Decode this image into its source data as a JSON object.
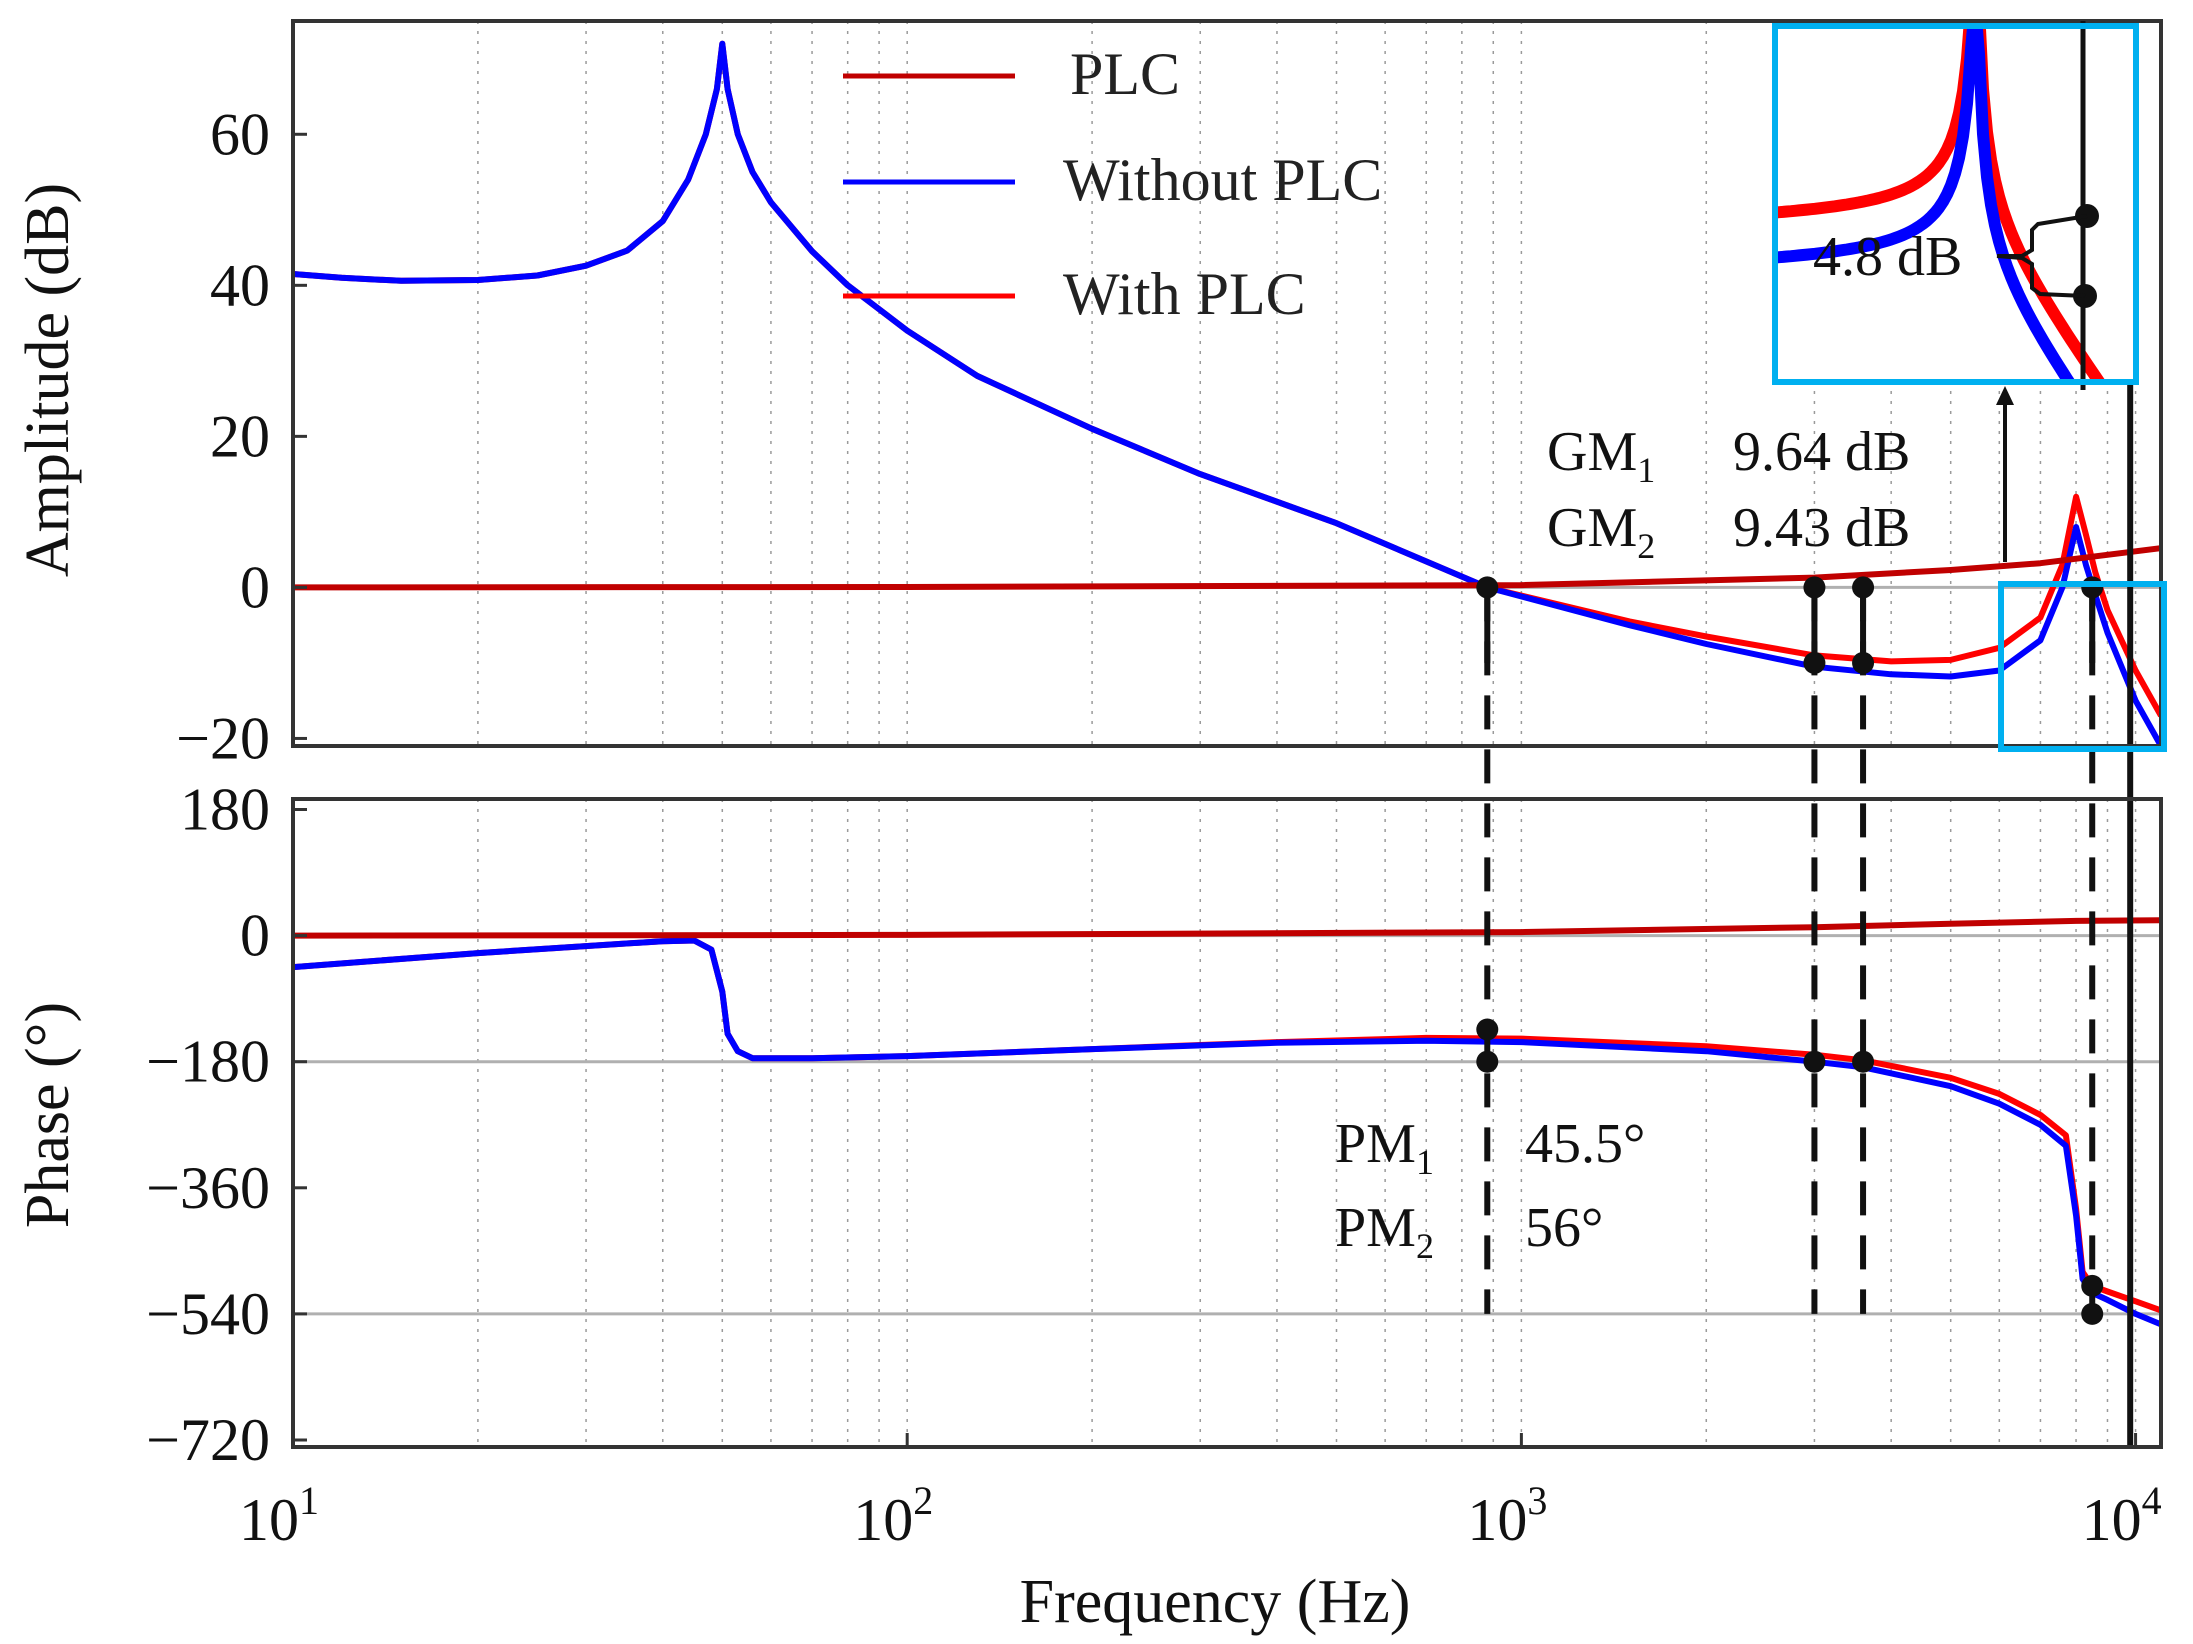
{
  "chart_data": {
    "type": "line",
    "panels": [
      {
        "name": "amplitude",
        "ylabel": "Amplitude (dB)",
        "ylim": [
          -21,
          75
        ],
        "yticks": [
          60,
          40,
          20,
          0,
          -20
        ],
        "ytick_labels": [
          "60",
          "40",
          "20",
          "0",
          "−20"
        ]
      },
      {
        "name": "phase",
        "ylabel": "Phase (°)",
        "ylim": [
          -730,
          195
        ],
        "yticks": [
          180,
          0,
          -180,
          -360,
          -540,
          -720
        ],
        "ytick_labels": [
          "180",
          "0",
          "−180",
          "−360",
          "−540",
          "−720"
        ],
        "reference_lines": [
          0,
          -180,
          -540
        ]
      }
    ],
    "xlabel": "Frequency (Hz)",
    "xscale": "log",
    "xlim": [
      10,
      11000
    ],
    "xticks": [
      {
        "base": "10",
        "exp": "1",
        "value": 10
      },
      {
        "base": "10",
        "exp": "2",
        "value": 100
      },
      {
        "base": "10",
        "exp": "3",
        "value": 1000
      },
      {
        "base": "10",
        "exp": "4",
        "value": 10000
      }
    ],
    "legend": {
      "placement": "top-center",
      "entries": [
        {
          "label": "PLC",
          "color": "#c00000"
        },
        {
          "label": "Without PLC",
          "color": "#0000ff"
        },
        {
          "label": "With PLC",
          "color": "#ff0000"
        }
      ]
    },
    "series": [
      {
        "name": "PLC",
        "color": "#c00000",
        "amplitude": [
          [
            10,
            0
          ],
          [
            100,
            0.05
          ],
          [
            1000,
            0.3
          ],
          [
            3000,
            1.3
          ],
          [
            5000,
            2.3
          ],
          [
            7000,
            3.2
          ],
          [
            11000,
            5.2
          ]
        ],
        "phase": [
          [
            10,
            0
          ],
          [
            100,
            1
          ],
          [
            1000,
            5
          ],
          [
            3000,
            12
          ],
          [
            5000,
            17
          ],
          [
            8000,
            21
          ],
          [
            11000,
            22
          ]
        ]
      },
      {
        "name": "Without PLC",
        "color": "#0000ff",
        "amplitude": [
          [
            10,
            41.5
          ],
          [
            12,
            41
          ],
          [
            15,
            40.6
          ],
          [
            20,
            40.7
          ],
          [
            25,
            41.3
          ],
          [
            30,
            42.6
          ],
          [
            35,
            44.6
          ],
          [
            40,
            48.5
          ],
          [
            44,
            54
          ],
          [
            47,
            60
          ],
          [
            49,
            66
          ],
          [
            50,
            72
          ],
          [
            51,
            66
          ],
          [
            53,
            60
          ],
          [
            56,
            55
          ],
          [
            60,
            51
          ],
          [
            70,
            44.5
          ],
          [
            80,
            40
          ],
          [
            100,
            34
          ],
          [
            130,
            28
          ],
          [
            200,
            21
          ],
          [
            300,
            15
          ],
          [
            500,
            8.5
          ],
          [
            880,
            0
          ],
          [
            1500,
            -5
          ],
          [
            2000,
            -7.5
          ],
          [
            3000,
            -10.5
          ],
          [
            4000,
            -11.5
          ],
          [
            5000,
            -11.8
          ],
          [
            6000,
            -11
          ],
          [
            7000,
            -7
          ],
          [
            7600,
            0
          ],
          [
            8000,
            8
          ],
          [
            8300,
            3
          ],
          [
            8600,
            -1
          ],
          [
            9000,
            -6
          ],
          [
            10000,
            -15
          ],
          [
            11000,
            -21
          ]
        ],
        "phase": [
          [
            10,
            -45
          ],
          [
            20,
            -25
          ],
          [
            40,
            -8
          ],
          [
            45,
            -7
          ],
          [
            48,
            -20
          ],
          [
            50,
            -80
          ],
          [
            51,
            -140
          ],
          [
            53,
            -165
          ],
          [
            56,
            -175
          ],
          [
            70,
            -175
          ],
          [
            100,
            -172
          ],
          [
            200,
            -162
          ],
          [
            400,
            -153
          ],
          [
            700,
            -150
          ],
          [
            1000,
            -152
          ],
          [
            2000,
            -165
          ],
          [
            3000,
            -180
          ],
          [
            3600,
            -188
          ],
          [
            5000,
            -215
          ],
          [
            6000,
            -240
          ],
          [
            7000,
            -270
          ],
          [
            7700,
            -300
          ],
          [
            8000,
            -400
          ],
          [
            8200,
            -490
          ],
          [
            8500,
            -510
          ],
          [
            9000,
            -520
          ],
          [
            10000,
            -540
          ],
          [
            11000,
            -555
          ]
        ]
      },
      {
        "name": "With PLC",
        "color": "#ff0000",
        "amplitude": [
          [
            10,
            41.5
          ],
          [
            12,
            41
          ],
          [
            15,
            40.6
          ],
          [
            20,
            40.7
          ],
          [
            25,
            41.3
          ],
          [
            30,
            42.6
          ],
          [
            35,
            44.6
          ],
          [
            40,
            48.5
          ],
          [
            44,
            54
          ],
          [
            47,
            60
          ],
          [
            49,
            66
          ],
          [
            50,
            72
          ],
          [
            51,
            66
          ],
          [
            53,
            60
          ],
          [
            56,
            55
          ],
          [
            60,
            51
          ],
          [
            70,
            44.5
          ],
          [
            80,
            40
          ],
          [
            100,
            34
          ],
          [
            130,
            28
          ],
          [
            200,
            21
          ],
          [
            300,
            15
          ],
          [
            500,
            8.5
          ],
          [
            880,
            0
          ],
          [
            1500,
            -4.5
          ],
          [
            2000,
            -6.5
          ],
          [
            3000,
            -9
          ],
          [
            4000,
            -9.8
          ],
          [
            5000,
            -9.6
          ],
          [
            6000,
            -8
          ],
          [
            7000,
            -4
          ],
          [
            7600,
            3
          ],
          [
            8000,
            12
          ],
          [
            8300,
            7
          ],
          [
            8600,
            2
          ],
          [
            9000,
            -3
          ],
          [
            10000,
            -11
          ],
          [
            11000,
            -17
          ]
        ],
        "phase": [
          [
            10,
            -45
          ],
          [
            20,
            -25
          ],
          [
            40,
            -8
          ],
          [
            45,
            -7
          ],
          [
            48,
            -20
          ],
          [
            50,
            -80
          ],
          [
            51,
            -140
          ],
          [
            53,
            -165
          ],
          [
            56,
            -175
          ],
          [
            70,
            -175
          ],
          [
            100,
            -172
          ],
          [
            200,
            -162
          ],
          [
            400,
            -152
          ],
          [
            700,
            -146
          ],
          [
            1000,
            -147
          ],
          [
            2000,
            -158
          ],
          [
            3000,
            -170
          ],
          [
            3600,
            -178
          ],
          [
            5000,
            -203
          ],
          [
            6000,
            -226
          ],
          [
            7000,
            -256
          ],
          [
            7700,
            -285
          ],
          [
            8000,
            -390
          ],
          [
            8200,
            -480
          ],
          [
            8500,
            -500
          ],
          [
            9000,
            -508
          ],
          [
            10000,
            -522
          ],
          [
            11000,
            -535
          ]
        ]
      }
    ],
    "vertical_markers": [
      {
        "freq": 880,
        "style": "dashed"
      },
      {
        "freq": 3000,
        "style": "dashed"
      },
      {
        "freq": 3600,
        "style": "dashed"
      },
      {
        "freq": 8500,
        "style": "dashed"
      },
      {
        "freq": 9800,
        "style": "solid"
      }
    ],
    "markers": {
      "amplitude": [
        [
          880,
          0
        ],
        [
          3000,
          0
        ],
        [
          3000,
          -10
        ],
        [
          3600,
          0
        ],
        [
          3600,
          -10
        ],
        [
          8500,
          0
        ]
      ],
      "phase": [
        [
          880,
          -134
        ],
        [
          880,
          -180
        ],
        [
          3000,
          -180
        ],
        [
          3600,
          -180
        ],
        [
          8500,
          -500
        ],
        [
          8500,
          -540
        ]
      ]
    },
    "annotations": {
      "gm": [
        {
          "base": "GM",
          "sub": "1",
          "value": "9.64 dB"
        },
        {
          "base": "GM",
          "sub": "2",
          "value": "9.43 dB"
        }
      ],
      "pm": [
        {
          "base": "PM",
          "sub": "1",
          "value": "45.5°"
        },
        {
          "base": "PM",
          "sub": "2",
          "value": "56°"
        }
      ],
      "inset_label": "4.8 dB"
    },
    "inset": {
      "freq_range": [
        6000,
        11000
      ],
      "amp_range": [
        -21,
        0
      ],
      "frame_color": "#00b0f0",
      "red_level": 49,
      "blue_level": 38
    },
    "grid": "dotted-vertical-minor"
  }
}
